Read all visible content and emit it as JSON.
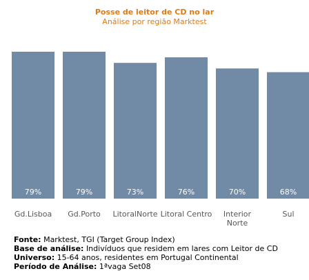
{
  "colors": {
    "bar": "#718aa6",
    "title": "#e07a14",
    "axis_label": "#555555",
    "value_label": "#ffffff"
  },
  "chart_data": {
    "type": "bar",
    "title": "Posse de leitor de CD no lar",
    "subtitle": "Análise por região Marktest",
    "categories": [
      "Gd.Lisboa",
      "Gd.Porto",
      "LitoralNorte",
      "Litoral Centro",
      "Interior Norte",
      "Sul"
    ],
    "category_lines": [
      [
        "Gd.Lisboa"
      ],
      [
        "Gd.Porto"
      ],
      [
        "LitoralNorte"
      ],
      [
        "Litoral Centro"
      ],
      [
        "Interior",
        "Norte"
      ],
      [
        "Sul"
      ]
    ],
    "values": [
      79,
      79,
      73,
      76,
      70,
      68
    ],
    "value_labels": [
      "79%",
      "79%",
      "73%",
      "76%",
      "70%",
      "68%"
    ],
    "ylim": [
      0,
      79
    ],
    "grid": false,
    "legend": "none"
  },
  "notes": [
    {
      "label": "Fonte:",
      "text": "Marktest, TGI (Target Group Index)"
    },
    {
      "label": "Base de análise:",
      "text": "Indivíduos que residem em lares com Leitor de CD"
    },
    {
      "label": "Universo:",
      "text": "15-64 anos, residentes em Portugal Continental"
    },
    {
      "label": "Período de Análise:",
      "text": "1ªvaga Set08"
    }
  ]
}
